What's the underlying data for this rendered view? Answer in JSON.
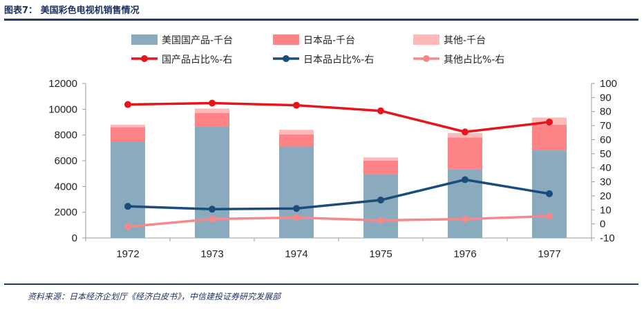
{
  "header": {
    "title": "图表7： 美国彩色电视机销售情况"
  },
  "footer": {
    "source": "资料来源：日本经济企划厅《经济白皮书》，中信建投证券研究发展部"
  },
  "colors": {
    "us_bar": "#8aaabe",
    "jp_bar": "#fd8386",
    "other_bar": "#fdb8b8",
    "us_line": "#e8141c",
    "jp_line": "#1a4d7a",
    "other_line": "#f5888a"
  },
  "chart_data": {
    "type": "bar+line",
    "title": "",
    "categories": [
      "1972",
      "1973",
      "1974",
      "1975",
      "1976",
      "1977"
    ],
    "y_left": {
      "min": 0,
      "max": 12000,
      "ticks": [
        "0",
        "2000",
        "4000",
        "6000",
        "8000",
        "10000",
        "12000"
      ]
    },
    "y_right": {
      "min": -10,
      "max": 100,
      "ticks": [
        "-10",
        "0",
        "10",
        "20",
        "30",
        "40",
        "50",
        "60",
        "70",
        "80",
        "90",
        "100"
      ]
    },
    "legend_placement": "top",
    "bar_series": [
      {
        "name": "美国国产品-千台",
        "values": [
          7500,
          8650,
          7100,
          4950,
          5350,
          6800
        ]
      },
      {
        "name": "日本品-千台",
        "values": [
          1100,
          1050,
          950,
          1050,
          2450,
          2000
        ]
      },
      {
        "name": "其他-千台",
        "values": [
          200,
          350,
          350,
          250,
          350,
          550
        ]
      }
    ],
    "line_series": [
      {
        "name": "国产品占比%-右",
        "values": [
          85,
          86,
          84.5,
          80.5,
          65.5,
          72.5
        ]
      },
      {
        "name": "日本品占比%-右",
        "values": [
          12.5,
          10.5,
          11,
          17,
          31.5,
          21.5
        ]
      },
      {
        "name": "其他占比%-右",
        "values": [
          -2,
          3.5,
          4.5,
          2.5,
          3.5,
          5.5
        ]
      }
    ]
  }
}
